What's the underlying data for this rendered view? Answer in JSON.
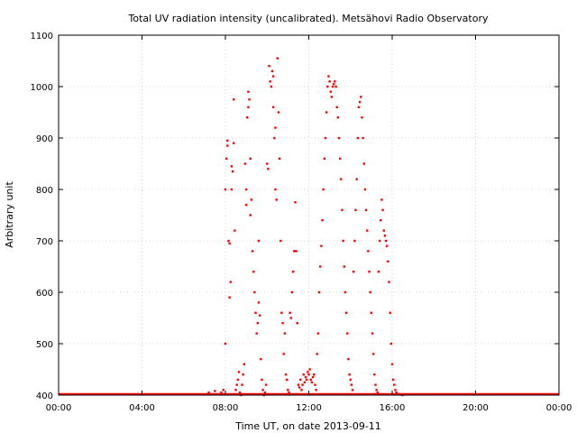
{
  "chart_data": {
    "type": "scatter",
    "title": "Total UV radiation intensity (uncalibrated). Metsähovi Radio Observatory",
    "xlabel": "Time UT, on date 2013-09-11",
    "ylabel": "Arbitrary unit",
    "xlim": [
      0,
      24
    ],
    "ylim": [
      400,
      1100
    ],
    "x_ticks": [
      0,
      4,
      8,
      12,
      16,
      20,
      24
    ],
    "x_tick_labels": [
      "00:00",
      "04:00",
      "08:00",
      "12:00",
      "16:00",
      "20:00",
      "00:00"
    ],
    "y_ticks": [
      400,
      500,
      600,
      700,
      800,
      900,
      1000,
      1100
    ],
    "y_tick_labels": [
      "400",
      "500",
      "600",
      "700",
      "800",
      "900",
      "1000",
      "1100"
    ],
    "grid": true,
    "color": "#ff0000",
    "baseline": {
      "value": 402,
      "x_from": 0,
      "x_to": 24
    },
    "points": [
      [
        7.2,
        405
      ],
      [
        7.5,
        408
      ],
      [
        7.8,
        405
      ],
      [
        7.9,
        410
      ],
      [
        8.0,
        500
      ],
      [
        8.0,
        800
      ],
      [
        8.05,
        860
      ],
      [
        8.1,
        885
      ],
      [
        8.1,
        895
      ],
      [
        8.15,
        700
      ],
      [
        8.2,
        695
      ],
      [
        8.2,
        590
      ],
      [
        8.25,
        620
      ],
      [
        8.3,
        800
      ],
      [
        8.3,
        845
      ],
      [
        8.35,
        835
      ],
      [
        8.4,
        975
      ],
      [
        8.4,
        890
      ],
      [
        8.45,
        720
      ],
      [
        8.5,
        410
      ],
      [
        8.55,
        420
      ],
      [
        8.6,
        430
      ],
      [
        8.65,
        445
      ],
      [
        8.7,
        405
      ],
      [
        8.75,
        400
      ],
      [
        8.8,
        420
      ],
      [
        8.85,
        440
      ],
      [
        8.9,
        460
      ],
      [
        8.95,
        850
      ],
      [
        9.0,
        800
      ],
      [
        9.0,
        770
      ],
      [
        9.05,
        940
      ],
      [
        9.1,
        990
      ],
      [
        9.1,
        960
      ],
      [
        9.15,
        975
      ],
      [
        9.2,
        860
      ],
      [
        9.2,
        750
      ],
      [
        9.25,
        780
      ],
      [
        9.3,
        680
      ],
      [
        9.35,
        640
      ],
      [
        9.4,
        600
      ],
      [
        9.45,
        560
      ],
      [
        9.5,
        520
      ],
      [
        9.55,
        540
      ],
      [
        9.6,
        700
      ],
      [
        9.6,
        580
      ],
      [
        9.65,
        555
      ],
      [
        9.7,
        470
      ],
      [
        9.75,
        430
      ],
      [
        9.8,
        410
      ],
      [
        9.85,
        400
      ],
      [
        9.9,
        405
      ],
      [
        9.95,
        420
      ],
      [
        10.0,
        850
      ],
      [
        10.05,
        840
      ],
      [
        10.1,
        1040
      ],
      [
        10.15,
        1010
      ],
      [
        10.2,
        1000
      ],
      [
        10.25,
        1030
      ],
      [
        10.3,
        1020
      ],
      [
        10.3,
        960
      ],
      [
        10.35,
        900
      ],
      [
        10.4,
        920
      ],
      [
        10.4,
        800
      ],
      [
        10.45,
        780
      ],
      [
        10.5,
        1055
      ],
      [
        10.55,
        950
      ],
      [
        10.6,
        860
      ],
      [
        10.65,
        700
      ],
      [
        10.7,
        560
      ],
      [
        10.75,
        540
      ],
      [
        10.8,
        480
      ],
      [
        10.85,
        520
      ],
      [
        10.9,
        440
      ],
      [
        10.95,
        430
      ],
      [
        11.0,
        410
      ],
      [
        11.05,
        405
      ],
      [
        11.1,
        560
      ],
      [
        11.15,
        550
      ],
      [
        11.2,
        600
      ],
      [
        11.25,
        640
      ],
      [
        11.3,
        680
      ],
      [
        11.35,
        775
      ],
      [
        11.4,
        680
      ],
      [
        11.45,
        540
      ],
      [
        11.5,
        420
      ],
      [
        11.55,
        415
      ],
      [
        11.6,
        430
      ],
      [
        11.65,
        410
      ],
      [
        11.7,
        420
      ],
      [
        11.75,
        440
      ],
      [
        11.8,
        425
      ],
      [
        11.85,
        435
      ],
      [
        11.9,
        430
      ],
      [
        11.95,
        445
      ],
      [
        12.0,
        440
      ],
      [
        12.05,
        450
      ],
      [
        12.1,
        430
      ],
      [
        12.15,
        425
      ],
      [
        12.2,
        435
      ],
      [
        12.25,
        440
      ],
      [
        12.3,
        420
      ],
      [
        12.35,
        410
      ],
      [
        12.4,
        480
      ],
      [
        12.45,
        520
      ],
      [
        12.5,
        600
      ],
      [
        12.55,
        650
      ],
      [
        12.6,
        690
      ],
      [
        12.65,
        740
      ],
      [
        12.7,
        800
      ],
      [
        12.75,
        860
      ],
      [
        12.8,
        900
      ],
      [
        12.85,
        950
      ],
      [
        12.9,
        1000
      ],
      [
        12.95,
        1020
      ],
      [
        13.0,
        1010
      ],
      [
        13.05,
        990
      ],
      [
        13.1,
        980
      ],
      [
        13.15,
        1000
      ],
      [
        13.2,
        1005
      ],
      [
        13.25,
        1010
      ],
      [
        13.3,
        1000
      ],
      [
        13.35,
        960
      ],
      [
        13.4,
        940
      ],
      [
        13.45,
        900
      ],
      [
        13.5,
        860
      ],
      [
        13.55,
        820
      ],
      [
        13.6,
        760
      ],
      [
        13.65,
        700
      ],
      [
        13.7,
        650
      ],
      [
        13.75,
        600
      ],
      [
        13.8,
        560
      ],
      [
        13.85,
        520
      ],
      [
        13.9,
        470
      ],
      [
        13.95,
        440
      ],
      [
        14.0,
        430
      ],
      [
        14.05,
        420
      ],
      [
        14.1,
        410
      ],
      [
        14.15,
        640
      ],
      [
        14.2,
        700
      ],
      [
        14.25,
        760
      ],
      [
        14.3,
        820
      ],
      [
        14.35,
        900
      ],
      [
        14.4,
        960
      ],
      [
        14.45,
        970
      ],
      [
        14.5,
        980
      ],
      [
        14.55,
        940
      ],
      [
        14.6,
        900
      ],
      [
        14.65,
        850
      ],
      [
        14.7,
        800
      ],
      [
        14.75,
        760
      ],
      [
        14.8,
        720
      ],
      [
        14.85,
        680
      ],
      [
        14.9,
        640
      ],
      [
        14.95,
        600
      ],
      [
        15.0,
        560
      ],
      [
        15.05,
        520
      ],
      [
        15.1,
        480
      ],
      [
        15.15,
        440
      ],
      [
        15.2,
        420
      ],
      [
        15.25,
        410
      ],
      [
        15.3,
        405
      ],
      [
        15.35,
        640
      ],
      [
        15.4,
        700
      ],
      [
        15.45,
        740
      ],
      [
        15.5,
        780
      ],
      [
        15.55,
        760
      ],
      [
        15.6,
        720
      ],
      [
        15.65,
        710
      ],
      [
        15.7,
        700
      ],
      [
        15.75,
        690
      ],
      [
        15.8,
        660
      ],
      [
        15.85,
        620
      ],
      [
        15.9,
        560
      ],
      [
        15.95,
        500
      ],
      [
        16.0,
        460
      ],
      [
        16.05,
        430
      ],
      [
        16.1,
        420
      ],
      [
        16.15,
        410
      ],
      [
        16.2,
        405
      ],
      [
        16.3,
        402
      ],
      [
        16.4,
        401
      ],
      [
        16.5,
        400
      ]
    ]
  }
}
